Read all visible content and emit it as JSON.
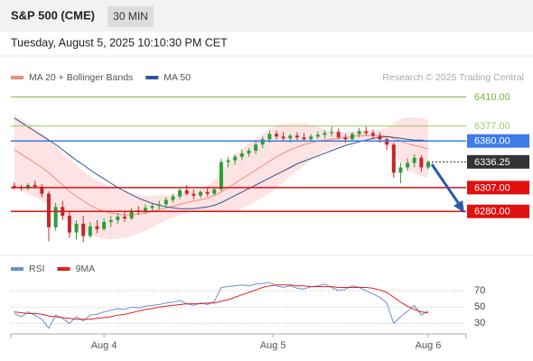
{
  "header": {
    "title": "S&P 500 (CME)",
    "interval": "30 MIN",
    "datetime": "Tuesday, August 5, 2025 10:10:30 PM CET"
  },
  "chart_data": [
    {
      "type": "candlestick",
      "credit": "Research © 2025 Trading Central",
      "x": [
        0,
        1,
        2,
        3,
        4,
        5,
        6,
        7,
        8,
        9,
        10,
        11,
        12,
        13,
        14,
        15,
        16,
        17,
        18,
        19,
        20,
        21,
        22,
        23,
        24,
        25,
        26,
        27,
        28,
        29,
        30,
        31,
        32,
        33,
        34,
        35,
        36,
        37,
        38,
        39,
        40,
        41,
        42,
        43,
        44,
        45,
        46,
        47,
        48,
        49,
        50,
        51,
        52,
        53,
        54,
        55,
        56,
        57,
        58,
        59,
        60
      ],
      "xlim": [
        -0.5,
        65.5
      ],
      "ylim": [
        6231,
        6433
      ],
      "up_color": "#2e9d3a",
      "down_color": "#c62828",
      "open": [
        6309,
        6307,
        6306,
        6310,
        6308,
        6300,
        6262,
        6285,
        6275,
        6256,
        6266,
        6252,
        6263,
        6260,
        6268,
        6270,
        6274,
        6272,
        6281,
        6280,
        6284,
        6286,
        6288,
        6293,
        6297,
        6304,
        6300,
        6298,
        6302,
        6300,
        6305,
        6336,
        6338,
        6342,
        6346,
        6349,
        6356,
        6362,
        6368,
        6365,
        6363,
        6366,
        6364,
        6362,
        6365,
        6367,
        6369,
        6370,
        6364,
        6362,
        6368,
        6371,
        6369,
        6366,
        6362,
        6356,
        6324,
        6330,
        6335,
        6341,
        6330
      ],
      "high": [
        6313,
        6310,
        6312,
        6315,
        6311,
        6303,
        6290,
        6292,
        6280,
        6270,
        6275,
        6268,
        6270,
        6272,
        6275,
        6278,
        6280,
        6284,
        6286,
        6288,
        6290,
        6292,
        6296,
        6300,
        6306,
        6310,
        6305,
        6304,
        6306,
        6308,
        6340,
        6342,
        6345,
        6350,
        6352,
        6360,
        6365,
        6372,
        6372,
        6370,
        6368,
        6370,
        6369,
        6368,
        6371,
        6372,
        6377,
        6374,
        6368,
        6370,
        6375,
        6376,
        6373,
        6370,
        6364,
        6358,
        6335,
        6340,
        6345,
        6344,
        6338
      ],
      "low": [
        6305,
        6303,
        6304,
        6306,
        6296,
        6246,
        6258,
        6270,
        6250,
        6248,
        6245,
        6250,
        6255,
        6258,
        6262,
        6266,
        6268,
        6270,
        6276,
        6277,
        6280,
        6282,
        6285,
        6290,
        6294,
        6298,
        6294,
        6295,
        6297,
        6298,
        6303,
        6330,
        6333,
        6338,
        6342,
        6345,
        6352,
        6358,
        6362,
        6360,
        6358,
        6361,
        6360,
        6359,
        6362,
        6363,
        6365,
        6362,
        6358,
        6360,
        6364,
        6366,
        6362,
        6358,
        6350,
        6318,
        6312,
        6326,
        6330,
        6325,
        6328
      ],
      "close": [
        6307,
        6306,
        6310,
        6308,
        6300,
        6262,
        6285,
        6275,
        6256,
        6266,
        6252,
        6263,
        6260,
        6268,
        6270,
        6274,
        6272,
        6281,
        6280,
        6284,
        6286,
        6288,
        6293,
        6297,
        6304,
        6300,
        6298,
        6302,
        6300,
        6305,
        6336,
        6338,
        6342,
        6346,
        6349,
        6356,
        6362,
        6368,
        6365,
        6363,
        6366,
        6364,
        6362,
        6365,
        6367,
        6369,
        6370,
        6364,
        6362,
        6368,
        6371,
        6369,
        6366,
        6362,
        6356,
        6324,
        6330,
        6335,
        6341,
        6330,
        6336.25
      ],
      "series": [
        {
          "name": "MA 20 + Bollinger Bands",
          "color": "#f28b82",
          "band_color": "#fde3e3",
          "values": [
            6350,
            6345,
            6340,
            6335,
            6330,
            6324,
            6317,
            6310,
            6303,
            6297,
            6292,
            6287,
            6283,
            6280,
            6278,
            6277,
            6276,
            6276,
            6277,
            6278,
            6280,
            6282,
            6284,
            6286,
            6288,
            6290,
            6292,
            6293,
            6295,
            6298,
            6302,
            6307,
            6312,
            6317,
            6322,
            6327,
            6332,
            6337,
            6342,
            6346,
            6350,
            6353,
            6356,
            6358,
            6360,
            6361,
            6362,
            6363,
            6364,
            6365,
            6366,
            6366,
            6366,
            6366,
            6365,
            6363,
            6360,
            6357,
            6355,
            6353,
            6351
          ],
          "upper": [
            6390,
            6385,
            6380,
            6374,
            6368,
            6362,
            6354,
            6346,
            6339,
            6332,
            6326,
            6320,
            6315,
            6311,
            6308,
            6305,
            6302,
            6300,
            6299,
            6298,
            6298,
            6298,
            6298,
            6299,
            6300,
            6302,
            6304,
            6306,
            6309,
            6316,
            6326,
            6335,
            6344,
            6351,
            6357,
            6363,
            6368,
            6373,
            6377,
            6379,
            6380,
            6380,
            6380,
            6378,
            6376,
            6373,
            6372,
            6371,
            6371,
            6371,
            6372,
            6372,
            6372,
            6373,
            6375,
            6381,
            6385,
            6387,
            6387,
            6386,
            6384
          ],
          "lower": [
            6310,
            6305,
            6300,
            6296,
            6292,
            6286,
            6280,
            6274,
            6267,
            6262,
            6258,
            6254,
            6251,
            6249,
            6248,
            6249,
            6250,
            6252,
            6255,
            6258,
            6262,
            6266,
            6270,
            6273,
            6276,
            6278,
            6280,
            6280,
            6281,
            6280,
            6278,
            6279,
            6280,
            6283,
            6287,
            6291,
            6296,
            6301,
            6307,
            6313,
            6320,
            6326,
            6332,
            6338,
            6344,
            6349,
            6352,
            6355,
            6357,
            6359,
            6360,
            6360,
            6360,
            6359,
            6355,
            6345,
            6335,
            6327,
            6323,
            6320,
            6318
          ]
        },
        {
          "name": "MA 50",
          "color": "#2f5597",
          "values": [
            6386,
            6381,
            6376,
            6371,
            6366,
            6361,
            6356,
            6350,
            6344,
            6338,
            6333,
            6327,
            6322,
            6317,
            6312,
            6307,
            6303,
            6299,
            6295,
            6292,
            6289,
            6287,
            6285,
            6284,
            6283,
            6283,
            6283,
            6284,
            6285,
            6287,
            6290,
            6294,
            6298,
            6302,
            6306,
            6310,
            6314,
            6318,
            6322,
            6326,
            6330,
            6334,
            6337,
            6340,
            6343,
            6346,
            6349,
            6352,
            6355,
            6357,
            6359,
            6361,
            6363,
            6364,
            6365,
            6364,
            6363,
            6362,
            6361,
            6361,
            6360
          ]
        }
      ],
      "levels": [
        {
          "value": 6410,
          "label": "6410.00",
          "color": "#7cb342",
          "style": "text"
        },
        {
          "value": 6377,
          "label": "6377.00",
          "color": "#9ccc65",
          "style": "text"
        },
        {
          "value": 6360,
          "label": "6360.00",
          "color": "#3d7be8",
          "style": "box"
        },
        {
          "value": 6336.25,
          "label": "6336.25",
          "color": "#333333",
          "style": "dotted"
        },
        {
          "value": 6307,
          "label": "6307.00",
          "color": "#e01010",
          "style": "box"
        },
        {
          "value": 6280,
          "label": "6280.00",
          "color": "#e01010",
          "style": "box"
        }
      ]
    },
    {
      "type": "line",
      "x": [
        0,
        1,
        2,
        3,
        4,
        5,
        6,
        7,
        8,
        9,
        10,
        11,
        12,
        13,
        14,
        15,
        16,
        17,
        18,
        19,
        20,
        21,
        22,
        23,
        24,
        25,
        26,
        27,
        28,
        29,
        30,
        31,
        32,
        33,
        34,
        35,
        36,
        37,
        38,
        39,
        40,
        41,
        42,
        43,
        44,
        45,
        46,
        47,
        48,
        49,
        50,
        51,
        52,
        53,
        54,
        55,
        56,
        57,
        58,
        59,
        60
      ],
      "xlim": [
        -0.5,
        65.5
      ],
      "ylim": [
        17,
        89
      ],
      "yticks": [
        70,
        50,
        30
      ],
      "xticks": [
        {
          "value": 13,
          "label": "Aug 4"
        },
        {
          "value": 37.5,
          "label": "Aug 5"
        },
        {
          "value": 60,
          "label": "Aug 6"
        }
      ],
      "series": [
        {
          "name": "RSI",
          "color": "#6b8fd6",
          "values": [
            42,
            38,
            44,
            40,
            35,
            24,
            40,
            36,
            30,
            38,
            33,
            40,
            41,
            44,
            46,
            48,
            47,
            50,
            49,
            51,
            52,
            53,
            55,
            56,
            58,
            54,
            52,
            55,
            53,
            57,
            74,
            75,
            76,
            77,
            76,
            78,
            79,
            80,
            76,
            74,
            76,
            73,
            72,
            75,
            76,
            78,
            74,
            70,
            72,
            76,
            74,
            70,
            66,
            62,
            55,
            30,
            38,
            45,
            52,
            40,
            45
          ]
        },
        {
          "name": "9MA",
          "color": "#e02020",
          "values": [
            44,
            43,
            42,
            42,
            41,
            39,
            38,
            37,
            36,
            35,
            35,
            35,
            36,
            37,
            38,
            40,
            41,
            43,
            45,
            47,
            48,
            50,
            51,
            52,
            53,
            54,
            54,
            54,
            55,
            55,
            57,
            59,
            62,
            65,
            68,
            71,
            74,
            76,
            77,
            77,
            77,
            76,
            76,
            75,
            75,
            75,
            75,
            74,
            74,
            74,
            74,
            74,
            73,
            71,
            68,
            62,
            56,
            51,
            47,
            44,
            43
          ]
        }
      ]
    }
  ]
}
